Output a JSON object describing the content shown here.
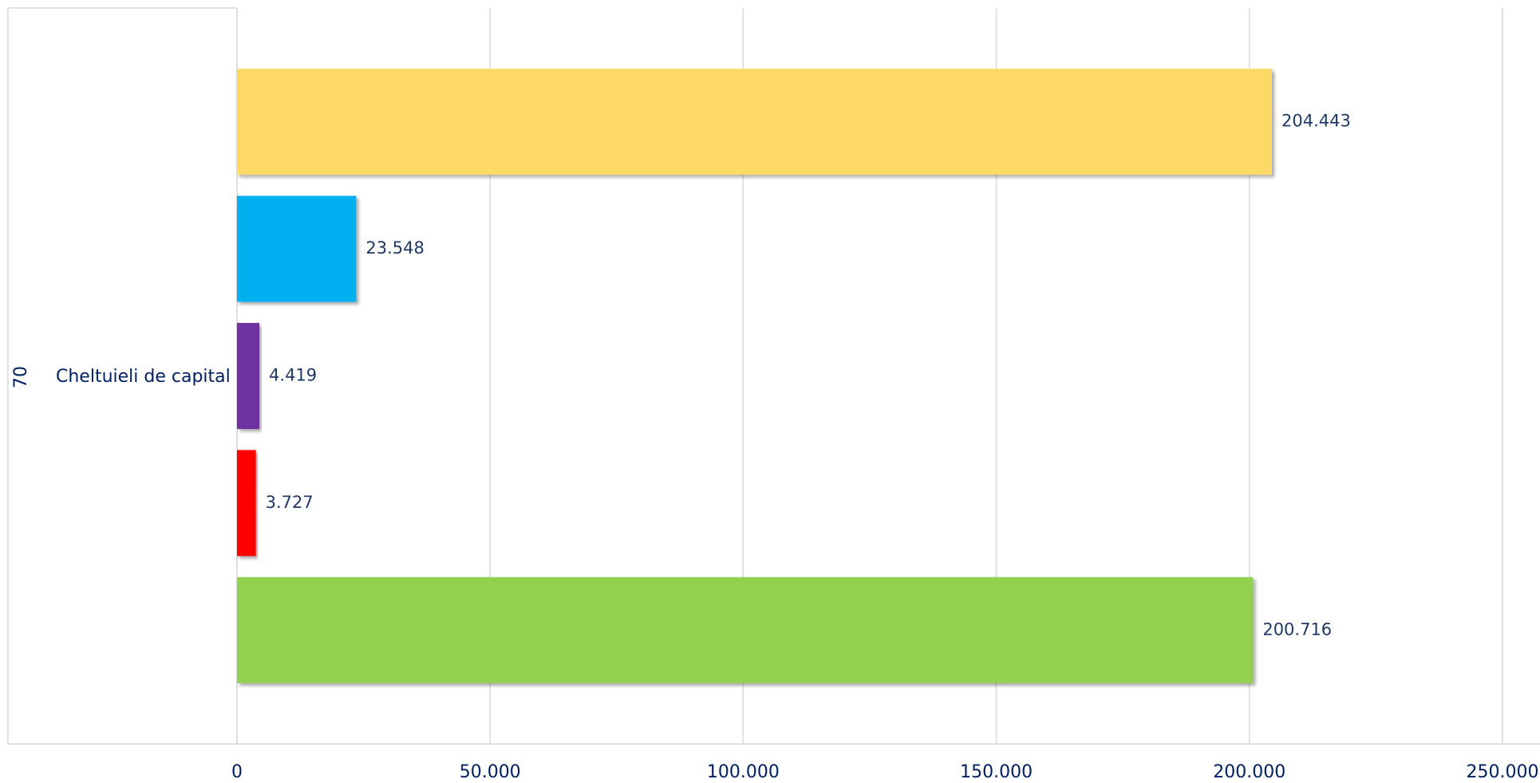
{
  "chart_data": {
    "type": "hbar",
    "categories": [
      "Cheltuieli de capital"
    ],
    "outer_categories": [
      "70"
    ],
    "series": [
      {
        "color": "#FFD966",
        "values": [
          204443
        ],
        "value_labels": [
          "204.443"
        ]
      },
      {
        "color": "#00B0F0",
        "values": [
          23548
        ],
        "value_labels": [
          "23.548"
        ]
      },
      {
        "color": "#7030A0",
        "values": [
          4419
        ],
        "value_labels": [
          "4.419"
        ]
      },
      {
        "color": "#FF0000",
        "values": [
          3727
        ],
        "value_labels": [
          "3.727"
        ]
      },
      {
        "color": "#92D050",
        "values": [
          200716
        ],
        "value_labels": [
          "200.716"
        ]
      }
    ],
    "xlim": [
      0,
      250000
    ],
    "xticks": [
      0,
      {
        "value": 50000,
        "label": "50.000"
      },
      {
        "value": 100000,
        "label": "100.000"
      },
      {
        "value": 150000,
        "label": "150.000"
      },
      {
        "value": 200000,
        "label": "200.000"
      },
      {
        "value": 250000,
        "label": "250.000"
      }
    ],
    "grid": true
  }
}
